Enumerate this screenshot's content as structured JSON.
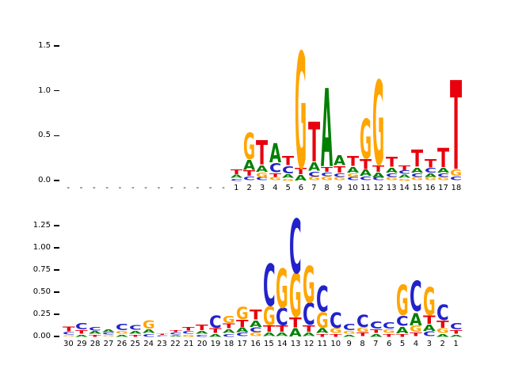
{
  "figure": {
    "background": "#ffffff"
  },
  "letter_colors": {
    "A": "#008000",
    "C": "#2222cc",
    "G": "#ffa500",
    "T": "#e8000d"
  },
  "chart_data": [
    {
      "type": "sequence_logo",
      "name": "top-logo-plot",
      "title": "",
      "xlabel": "",
      "ylabel": "",
      "ylim": [
        0,
        1.5
      ],
      "grid": false,
      "legend": "none",
      "yticks": [
        {
          "value": 0.0,
          "label": "0.0"
        },
        {
          "value": 0.5,
          "label": "0.5"
        },
        {
          "value": 1.0,
          "label": "1.0"
        },
        {
          "value": 1.5,
          "label": "1.5"
        }
      ],
      "columns": [
        {
          "label": "-",
          "stack": []
        },
        {
          "label": "-",
          "stack": []
        },
        {
          "label": "-",
          "stack": []
        },
        {
          "label": "-",
          "stack": []
        },
        {
          "label": "-",
          "stack": []
        },
        {
          "label": "-",
          "stack": []
        },
        {
          "label": "-",
          "stack": []
        },
        {
          "label": "-",
          "stack": []
        },
        {
          "label": "-",
          "stack": []
        },
        {
          "label": "-",
          "stack": []
        },
        {
          "label": "-",
          "stack": []
        },
        {
          "label": "-",
          "stack": []
        },
        {
          "label": "-",
          "stack": []
        },
        {
          "label": "1",
          "stack": [
            [
              "C",
              0.03
            ],
            [
              "A",
              0.04
            ],
            [
              "T",
              0.06
            ]
          ]
        },
        {
          "label": "2",
          "stack": [
            [
              "C",
              0.05
            ],
            [
              "T",
              0.07
            ],
            [
              "A",
              0.12
            ],
            [
              "G",
              0.3
            ]
          ]
        },
        {
          "label": "3",
          "stack": [
            [
              "C",
              0.04
            ],
            [
              "G",
              0.06
            ],
            [
              "A",
              0.08
            ],
            [
              "T",
              0.28
            ]
          ]
        },
        {
          "label": "4",
          "stack": [
            [
              "G",
              0.04
            ],
            [
              "T",
              0.05
            ],
            [
              "C",
              0.11
            ],
            [
              "A",
              0.22
            ]
          ]
        },
        {
          "label": "5",
          "stack": [
            [
              "G",
              0.03
            ],
            [
              "A",
              0.05
            ],
            [
              "C",
              0.09
            ],
            [
              "T",
              0.11
            ]
          ]
        },
        {
          "label": "6",
          "stack": [
            [
              "A",
              0.07
            ],
            [
              "T",
              0.08
            ],
            [
              "G",
              1.3
            ]
          ]
        },
        {
          "label": "7",
          "stack": [
            [
              "G",
              0.05
            ],
            [
              "C",
              0.06
            ],
            [
              "A",
              0.1
            ],
            [
              "T",
              0.45
            ]
          ]
        },
        {
          "label": "8",
          "stack": [
            [
              "G",
              0.05
            ],
            [
              "C",
              0.05
            ],
            [
              "T",
              0.06
            ],
            [
              "A",
              0.88
            ]
          ]
        },
        {
          "label": "9",
          "stack": [
            [
              "G",
              0.04
            ],
            [
              "C",
              0.05
            ],
            [
              "T",
              0.08
            ],
            [
              "A",
              0.12
            ]
          ]
        },
        {
          "label": "10",
          "stack": [
            [
              "C",
              0.04
            ],
            [
              "G",
              0.05
            ],
            [
              "A",
              0.07
            ],
            [
              "T",
              0.12
            ]
          ]
        },
        {
          "label": "11",
          "stack": [
            [
              "C",
              0.05
            ],
            [
              "A",
              0.08
            ],
            [
              "T",
              0.12
            ],
            [
              "G",
              0.45
            ]
          ]
        },
        {
          "label": "12",
          "stack": [
            [
              "C",
              0.04
            ],
            [
              "A",
              0.06
            ],
            [
              "T",
              0.08
            ],
            [
              "G",
              0.95
            ]
          ]
        },
        {
          "label": "13",
          "stack": [
            [
              "G",
              0.04
            ],
            [
              "C",
              0.05
            ],
            [
              "A",
              0.06
            ],
            [
              "T",
              0.12
            ]
          ]
        },
        {
          "label": "14",
          "stack": [
            [
              "G",
              0.03
            ],
            [
              "A",
              0.04
            ],
            [
              "C",
              0.05
            ],
            [
              "T",
              0.06
            ]
          ]
        },
        {
          "label": "15",
          "stack": [
            [
              "G",
              0.04
            ],
            [
              "C",
              0.05
            ],
            [
              "A",
              0.06
            ],
            [
              "T",
              0.2
            ]
          ]
        },
        {
          "label": "16",
          "stack": [
            [
              "G",
              0.04
            ],
            [
              "A",
              0.05
            ],
            [
              "C",
              0.06
            ],
            [
              "T",
              0.1
            ]
          ]
        },
        {
          "label": "17",
          "stack": [
            [
              "G",
              0.04
            ],
            [
              "C",
              0.05
            ],
            [
              "A",
              0.06
            ],
            [
              "T",
              0.22
            ]
          ]
        },
        {
          "label": "18",
          "stack": [
            [
              "C",
              0.05
            ],
            [
              "G",
              0.08
            ],
            [
              "T",
              1.0
            ]
          ]
        }
      ]
    },
    {
      "type": "sequence_logo",
      "name": "bottom-logo-plot",
      "title": "",
      "xlabel": "",
      "ylabel": "",
      "ylim": [
        0,
        1.25
      ],
      "grid": false,
      "legend": "none",
      "yticks": [
        {
          "value": 0.0,
          "label": "0.00"
        },
        {
          "value": 0.25,
          "label": "0.25"
        },
        {
          "value": 0.5,
          "label": "0.50"
        },
        {
          "value": 0.75,
          "label": "0.75"
        },
        {
          "value": 1.0,
          "label": "1.00"
        },
        {
          "value": 1.25,
          "label": "1.25"
        }
      ],
      "columns": [
        {
          "label": "30",
          "stack": [
            [
              "G",
              0.02
            ],
            [
              "C",
              0.04
            ],
            [
              "T",
              0.06
            ]
          ]
        },
        {
          "label": "29",
          "stack": [
            [
              "A",
              0.03
            ],
            [
              "T",
              0.05
            ],
            [
              "C",
              0.08
            ]
          ]
        },
        {
          "label": "28",
          "stack": [
            [
              "T",
              0.03
            ],
            [
              "A",
              0.04
            ],
            [
              "C",
              0.05
            ]
          ]
        },
        {
          "label": "27",
          "stack": [
            [
              "G",
              0.02
            ],
            [
              "C",
              0.03
            ],
            [
              "A",
              0.04
            ]
          ]
        },
        {
          "label": "26",
          "stack": [
            [
              "A",
              0.03
            ],
            [
              "G",
              0.04
            ],
            [
              "C",
              0.08
            ]
          ]
        },
        {
          "label": "25",
          "stack": [
            [
              "T",
              0.03
            ],
            [
              "A",
              0.04
            ],
            [
              "C",
              0.06
            ]
          ]
        },
        {
          "label": "24",
          "stack": [
            [
              "C",
              0.04
            ],
            [
              "A",
              0.05
            ],
            [
              "G",
              0.1
            ]
          ]
        },
        {
          "label": "23",
          "stack": [
            [
              "C",
              0.02
            ],
            [
              "T",
              0.02
            ]
          ]
        },
        {
          "label": "22",
          "stack": [
            [
              "A",
              0.02
            ],
            [
              "C",
              0.03
            ],
            [
              "T",
              0.03
            ]
          ]
        },
        {
          "label": "21",
          "stack": [
            [
              "G",
              0.03
            ],
            [
              "C",
              0.04
            ],
            [
              "T",
              0.05
            ]
          ]
        },
        {
          "label": "20",
          "stack": [
            [
              "C",
              0.03
            ],
            [
              "A",
              0.04
            ],
            [
              "T",
              0.07
            ]
          ]
        },
        {
          "label": "19",
          "stack": [
            [
              "A",
              0.04
            ],
            [
              "T",
              0.06
            ],
            [
              "C",
              0.15
            ]
          ]
        },
        {
          "label": "18",
          "stack": [
            [
              "C",
              0.04
            ],
            [
              "A",
              0.05
            ],
            [
              "T",
              0.06
            ],
            [
              "G",
              0.09
            ]
          ]
        },
        {
          "label": "17",
          "stack": [
            [
              "C",
              0.05
            ],
            [
              "A",
              0.06
            ],
            [
              "T",
              0.09
            ],
            [
              "G",
              0.15
            ]
          ]
        },
        {
          "label": "16",
          "stack": [
            [
              "G",
              0.05
            ],
            [
              "C",
              0.06
            ],
            [
              "A",
              0.08
            ],
            [
              "T",
              0.12
            ]
          ]
        },
        {
          "label": "15",
          "stack": [
            [
              "A",
              0.05
            ],
            [
              "T",
              0.08
            ],
            [
              "G",
              0.22
            ],
            [
              "C",
              0.48
            ]
          ]
        },
        {
          "label": "14",
          "stack": [
            [
              "A",
              0.05
            ],
            [
              "T",
              0.08
            ],
            [
              "C",
              0.2
            ],
            [
              "G",
              0.45
            ]
          ]
        },
        {
          "label": "13",
          "stack": [
            [
              "A",
              0.1
            ],
            [
              "T",
              0.12
            ],
            [
              "G",
              0.5
            ],
            [
              "C",
              0.62
            ]
          ]
        },
        {
          "label": "12",
          "stack": [
            [
              "A",
              0.05
            ],
            [
              "T",
              0.08
            ],
            [
              "C",
              0.25
            ],
            [
              "G",
              0.42
            ]
          ]
        },
        {
          "label": "11",
          "stack": [
            [
              "T",
              0.04
            ],
            [
              "A",
              0.06
            ],
            [
              "G",
              0.18
            ],
            [
              "C",
              0.3
            ]
          ]
        },
        {
          "label": "10",
          "stack": [
            [
              "T",
              0.04
            ],
            [
              "G",
              0.06
            ],
            [
              "C",
              0.18
            ]
          ]
        },
        {
          "label": "9",
          "stack": [
            [
              "A",
              0.03
            ],
            [
              "G",
              0.04
            ],
            [
              "C",
              0.08
            ]
          ]
        },
        {
          "label": "8",
          "stack": [
            [
              "T",
              0.05
            ],
            [
              "G",
              0.06
            ],
            [
              "C",
              0.15
            ]
          ]
        },
        {
          "label": "7",
          "stack": [
            [
              "A",
              0.04
            ],
            [
              "T",
              0.05
            ],
            [
              "C",
              0.09
            ]
          ]
        },
        {
          "label": "6",
          "stack": [
            [
              "T",
              0.04
            ],
            [
              "G",
              0.05
            ],
            [
              "C",
              0.08
            ]
          ]
        },
        {
          "label": "5",
          "stack": [
            [
              "T",
              0.04
            ],
            [
              "A",
              0.08
            ],
            [
              "C",
              0.12
            ],
            [
              "G",
              0.35
            ]
          ]
        },
        {
          "label": "4",
          "stack": [
            [
              "T",
              0.05
            ],
            [
              "G",
              0.08
            ],
            [
              "A",
              0.15
            ],
            [
              "C",
              0.35
            ]
          ]
        },
        {
          "label": "3",
          "stack": [
            [
              "C",
              0.06
            ],
            [
              "A",
              0.08
            ],
            [
              "T",
              0.1
            ],
            [
              "G",
              0.32
            ]
          ]
        },
        {
          "label": "2",
          "stack": [
            [
              "A",
              0.04
            ],
            [
              "G",
              0.06
            ],
            [
              "T",
              0.09
            ],
            [
              "C",
              0.18
            ]
          ]
        },
        {
          "label": "1",
          "stack": [
            [
              "A",
              0.03
            ],
            [
              "T",
              0.05
            ],
            [
              "C",
              0.08
            ]
          ]
        }
      ]
    }
  ]
}
